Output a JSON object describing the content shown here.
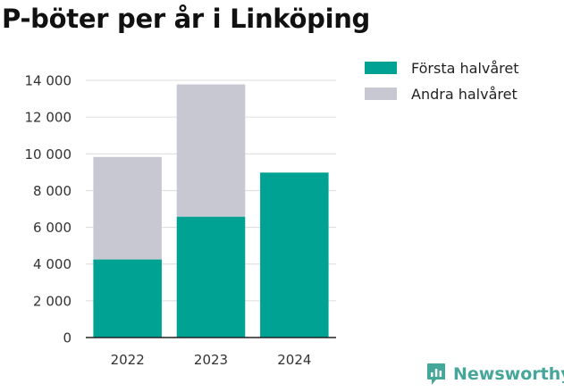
{
  "title": "P-böter per år i Linköping",
  "brand": {
    "name": "Newsworthy",
    "icon": "newsworthy-logo-icon",
    "color": "#45a69a"
  },
  "chart_data": {
    "type": "bar",
    "stacked": true,
    "categories": [
      "2022",
      "2023",
      "2024"
    ],
    "series": [
      {
        "name": "Första halvåret",
        "color": "#00a293",
        "values": [
          4250,
          6580,
          8980
        ]
      },
      {
        "name": "Andra halvåret",
        "color": "#c8c8d2",
        "values": [
          5580,
          7200,
          0
        ]
      }
    ],
    "ylim": [
      0,
      14000
    ],
    "yticks": [
      0,
      2000,
      4000,
      6000,
      8000,
      10000,
      12000,
      14000
    ],
    "ytick_labels": [
      "0",
      "2 000",
      "4 000",
      "6 000",
      "8 000",
      "10 000",
      "12 000",
      "14 000"
    ],
    "grid": true,
    "legend_position": "top-right",
    "xlabel": "",
    "ylabel": ""
  }
}
